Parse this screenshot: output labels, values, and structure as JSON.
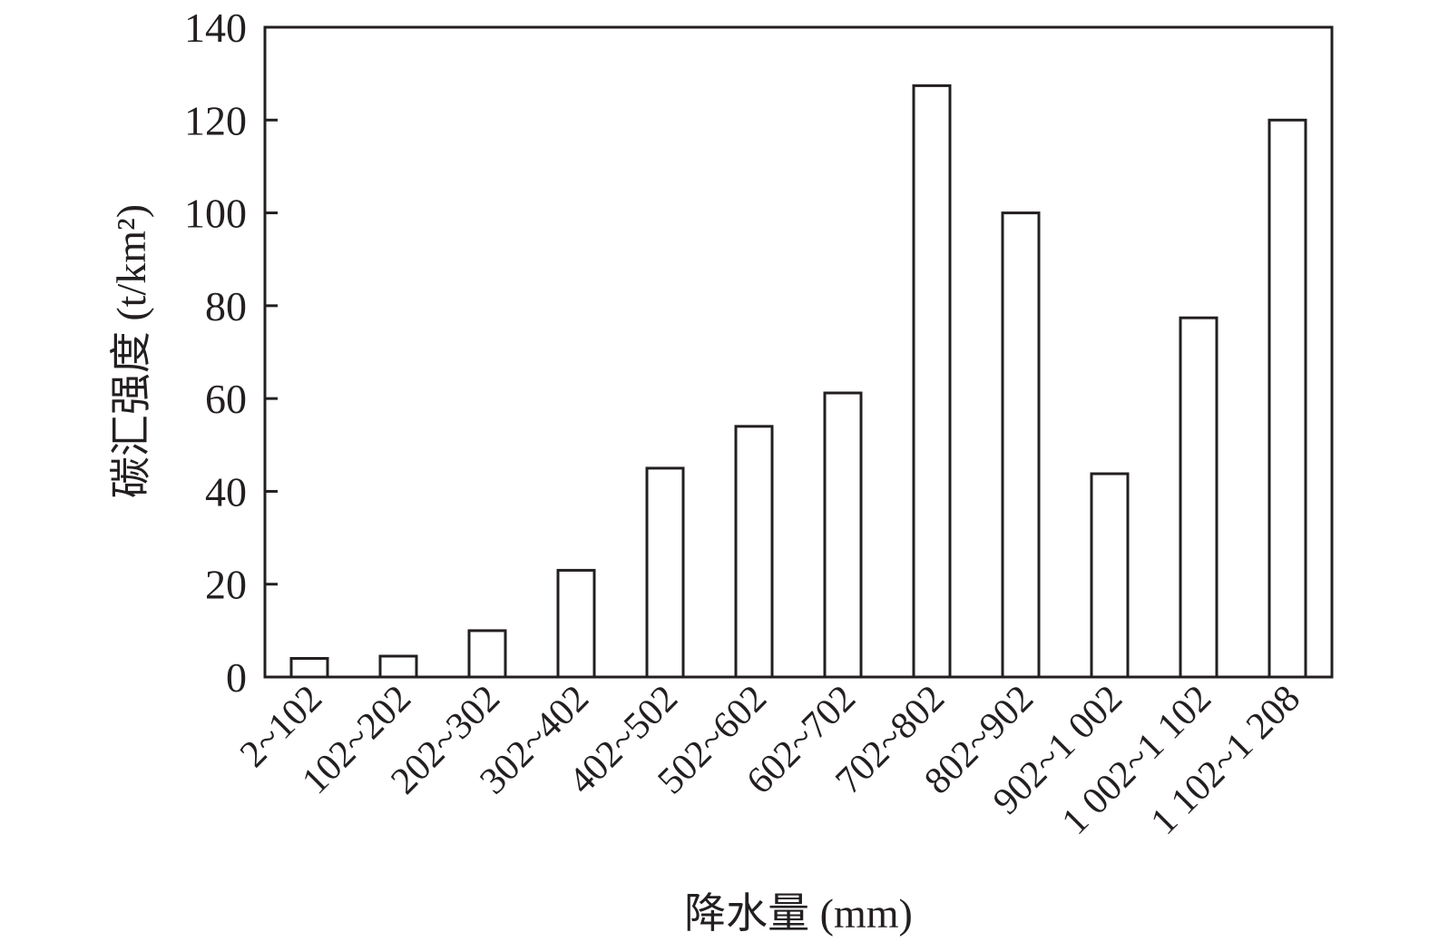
{
  "chart_data": {
    "type": "bar",
    "title": "",
    "xlabel": "降水量 (mm)",
    "ylabel": "碳汇强度 (t/km²)",
    "categories": [
      "2~102",
      "102~202",
      "202~302",
      "302~402",
      "402~502",
      "502~602",
      "602~702",
      "702~802",
      "802~902",
      "902~1 002",
      "1 002~1 102",
      "1 102~1 208"
    ],
    "values": [
      4,
      4.5,
      10,
      23,
      45,
      54,
      61.2,
      127.4,
      100,
      43.8,
      77.4,
      120
    ],
    "ylim": [
      0,
      140
    ],
    "yticks": [
      0,
      20,
      40,
      60,
      80,
      100,
      120,
      140
    ],
    "grid": false,
    "legend": "none",
    "bar_fill": "#ffffff",
    "bar_stroke": "#231f20",
    "axis_color": "#231f20"
  }
}
